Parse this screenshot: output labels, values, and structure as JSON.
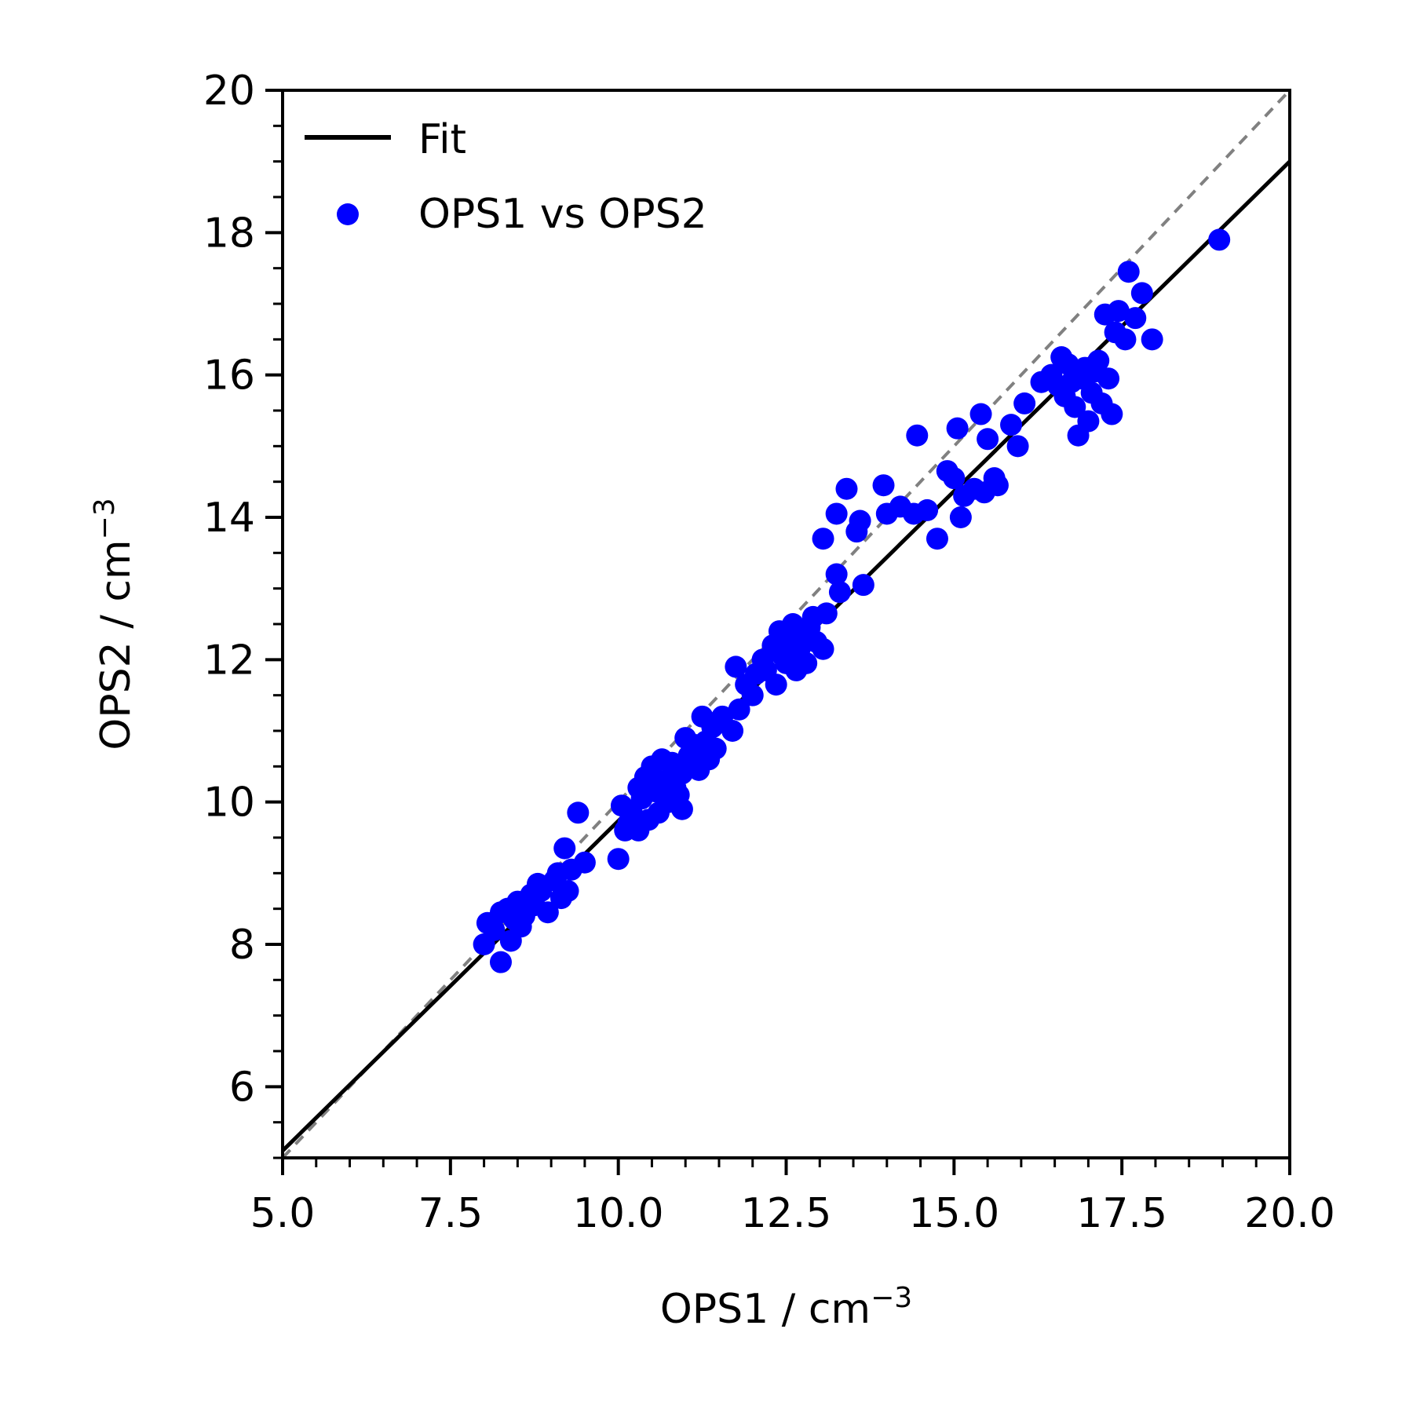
{
  "chart_data": {
    "type": "scatter",
    "xlabel": "OPS1 / cm",
    "xlabel_sup": "−3",
    "ylabel": "OPS2 / cm",
    "ylabel_sup": "−3",
    "xlim": [
      5.0,
      20.0
    ],
    "ylim": [
      5.0,
      20.0
    ],
    "xticks": [
      5.0,
      7.5,
      10.0,
      12.5,
      15.0,
      17.5,
      20.0
    ],
    "xtick_labels": [
      "5.0",
      "7.5",
      "10.0",
      "12.5",
      "15.0",
      "17.5",
      "20.0"
    ],
    "yticks": [
      6,
      8,
      10,
      12,
      14,
      16,
      18,
      20
    ],
    "ytick_labels": [
      "6",
      "8",
      "10",
      "12",
      "14",
      "16",
      "18",
      "20"
    ],
    "x_minor_step": 0.5,
    "y_minor_step": 0.5,
    "grid": false,
    "legend": {
      "placement": "upper-left",
      "entries": [
        {
          "label": "Fit",
          "kind": "line",
          "color": "#000000"
        },
        {
          "label": "OPS1 vs OPS2",
          "kind": "marker",
          "color": "#0000ff"
        }
      ]
    },
    "fit_line": {
      "name": "Fit",
      "color": "#000000",
      "x": [
        5.0,
        20.0
      ],
      "y": [
        5.1,
        19.0
      ]
    },
    "identity_line": {
      "color": "#808080",
      "style": "dashed",
      "x": [
        5.0,
        20.0
      ],
      "y": [
        5.0,
        20.0
      ]
    },
    "series": [
      {
        "name": "OPS1 vs OPS2",
        "color": "#0000ff",
        "points": [
          [
            8.0,
            8.0
          ],
          [
            8.05,
            8.3
          ],
          [
            8.15,
            8.2
          ],
          [
            8.25,
            8.45
          ],
          [
            8.25,
            7.75
          ],
          [
            8.35,
            8.5
          ],
          [
            8.4,
            8.05
          ],
          [
            8.45,
            8.35
          ],
          [
            8.5,
            8.6
          ],
          [
            8.55,
            8.25
          ],
          [
            8.6,
            8.4
          ],
          [
            8.7,
            8.7
          ],
          [
            8.75,
            8.55
          ],
          [
            8.8,
            8.85
          ],
          [
            8.85,
            8.75
          ],
          [
            8.95,
            8.45
          ],
          [
            9.05,
            8.9
          ],
          [
            9.1,
            9.0
          ],
          [
            9.15,
            8.65
          ],
          [
            9.2,
            9.35
          ],
          [
            9.25,
            8.75
          ],
          [
            9.3,
            9.05
          ],
          [
            9.4,
            9.85
          ],
          [
            9.5,
            9.15
          ],
          [
            10.0,
            9.2
          ],
          [
            10.05,
            9.95
          ],
          [
            10.1,
            9.6
          ],
          [
            10.15,
            9.7
          ],
          [
            10.2,
            9.85
          ],
          [
            10.3,
            10.2
          ],
          [
            10.3,
            9.6
          ],
          [
            10.35,
            10.05
          ],
          [
            10.4,
            10.35
          ],
          [
            10.45,
            9.75
          ],
          [
            10.5,
            10.5
          ],
          [
            10.55,
            10.15
          ],
          [
            10.6,
            9.85
          ],
          [
            10.65,
            10.6
          ],
          [
            10.7,
            10.3
          ],
          [
            10.75,
            10.0
          ],
          [
            10.8,
            10.55
          ],
          [
            10.85,
            10.2
          ],
          [
            10.9,
            10.1
          ],
          [
            10.95,
            10.4
          ],
          [
            10.95,
            9.9
          ],
          [
            11.0,
            10.9
          ],
          [
            11.05,
            10.65
          ],
          [
            11.1,
            10.55
          ],
          [
            11.15,
            10.8
          ],
          [
            11.2,
            10.45
          ],
          [
            11.25,
            11.2
          ],
          [
            11.3,
            10.85
          ],
          [
            11.35,
            10.6
          ],
          [
            11.4,
            11.05
          ],
          [
            11.45,
            10.75
          ],
          [
            11.55,
            11.2
          ],
          [
            11.7,
            11.0
          ],
          [
            11.75,
            11.9
          ],
          [
            11.8,
            11.3
          ],
          [
            11.9,
            11.65
          ],
          [
            12.0,
            11.5
          ],
          [
            12.05,
            11.8
          ],
          [
            12.15,
            12.0
          ],
          [
            12.2,
            11.85
          ],
          [
            12.3,
            12.2
          ],
          [
            12.35,
            11.65
          ],
          [
            12.4,
            12.4
          ],
          [
            12.45,
            12.05
          ],
          [
            12.5,
            11.95
          ],
          [
            12.55,
            12.3
          ],
          [
            12.6,
            12.5
          ],
          [
            12.65,
            11.85
          ],
          [
            12.7,
            12.15
          ],
          [
            12.75,
            12.35
          ],
          [
            12.8,
            11.95
          ],
          [
            12.85,
            12.45
          ],
          [
            12.9,
            12.6
          ],
          [
            12.95,
            12.25
          ],
          [
            13.05,
            12.15
          ],
          [
            13.1,
            12.65
          ],
          [
            13.05,
            13.7
          ],
          [
            13.25,
            13.2
          ],
          [
            13.25,
            14.05
          ],
          [
            13.3,
            12.95
          ],
          [
            13.4,
            14.4
          ],
          [
            13.55,
            13.8
          ],
          [
            13.6,
            13.95
          ],
          [
            13.65,
            13.05
          ],
          [
            13.95,
            14.45
          ],
          [
            14.0,
            14.05
          ],
          [
            14.2,
            14.15
          ],
          [
            14.4,
            14.05
          ],
          [
            14.45,
            15.15
          ],
          [
            14.6,
            14.1
          ],
          [
            14.75,
            13.7
          ],
          [
            14.9,
            14.65
          ],
          [
            15.0,
            14.55
          ],
          [
            15.05,
            15.25
          ],
          [
            15.1,
            14.0
          ],
          [
            15.15,
            14.3
          ],
          [
            15.3,
            14.4
          ],
          [
            15.4,
            15.45
          ],
          [
            15.45,
            14.35
          ],
          [
            15.5,
            15.1
          ],
          [
            15.6,
            14.55
          ],
          [
            15.65,
            14.45
          ],
          [
            15.85,
            15.3
          ],
          [
            15.95,
            15.0
          ],
          [
            16.05,
            15.6
          ],
          [
            16.3,
            15.9
          ],
          [
            16.45,
            16.0
          ],
          [
            16.55,
            15.85
          ],
          [
            16.6,
            16.25
          ],
          [
            16.65,
            15.7
          ],
          [
            16.7,
            16.15
          ],
          [
            16.75,
            15.9
          ],
          [
            16.8,
            15.55
          ],
          [
            16.85,
            15.15
          ],
          [
            16.9,
            15.95
          ],
          [
            16.95,
            16.1
          ],
          [
            17.0,
            15.35
          ],
          [
            17.05,
            15.75
          ],
          [
            17.1,
            16.05
          ],
          [
            17.15,
            16.2
          ],
          [
            17.2,
            15.6
          ],
          [
            17.25,
            16.85
          ],
          [
            17.3,
            15.95
          ],
          [
            17.35,
            15.45
          ],
          [
            17.4,
            16.6
          ],
          [
            17.45,
            16.9
          ],
          [
            17.55,
            16.5
          ],
          [
            17.6,
            17.45
          ],
          [
            17.7,
            16.8
          ],
          [
            17.8,
            17.15
          ],
          [
            17.95,
            16.5
          ],
          [
            18.95,
            17.9
          ]
        ]
      }
    ]
  }
}
